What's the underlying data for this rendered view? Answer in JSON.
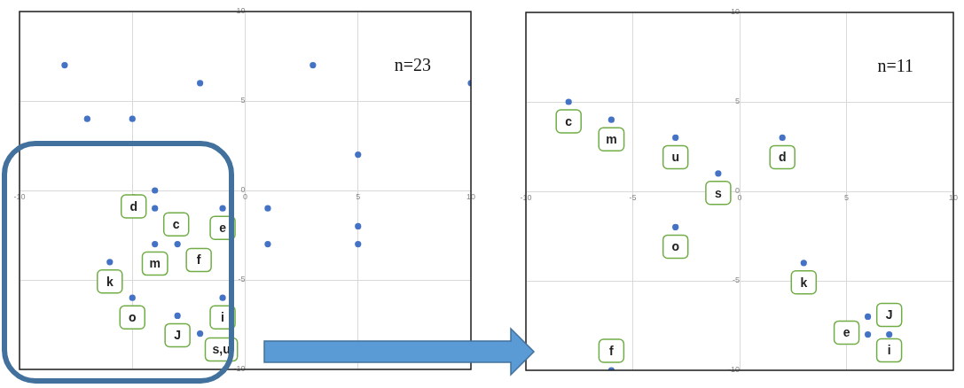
{
  "chart_data": [
    {
      "type": "scatter",
      "xlim": [
        -10,
        10
      ],
      "ylim": [
        -10,
        10
      ],
      "xticks": [
        -10,
        -5,
        0,
        5,
        10
      ],
      "yticks": [
        -10,
        -5,
        0,
        5,
        10
      ],
      "grid": true,
      "marker": "circle",
      "series": [
        {
          "color": "#4472c4",
          "x": [
            -8,
            3,
            -2,
            10,
            -7,
            -5,
            5,
            -4,
            -4,
            -1,
            1,
            5,
            -4,
            -3,
            1,
            5,
            -6,
            -5,
            -1,
            -3,
            -2
          ],
          "values": [
            7,
            7,
            6,
            6,
            4,
            4,
            2,
            0,
            -1,
            -1,
            -1,
            -2,
            -3,
            -3,
            -3,
            -3,
            -4,
            -6,
            -6,
            -7,
            -8
          ]
        }
      ],
      "annotations": [
        "n=23",
        {
          "text": "d",
          "x": -4,
          "y": 0
        },
        {
          "text": "c",
          "x": -4,
          "y": -1
        },
        {
          "text": "e",
          "x": -1,
          "y": -1
        },
        {
          "text": "m",
          "x": -4,
          "y": -3
        },
        {
          "text": "f",
          "x": -3,
          "y": -3
        },
        {
          "text": "k",
          "x": -6,
          "y": -4
        },
        {
          "text": "o",
          "x": -5,
          "y": -6
        },
        {
          "text": "i",
          "x": -1,
          "y": -6
        },
        {
          "text": "J",
          "x": -3,
          "y": -7
        },
        {
          "text": "s,u",
          "x": -2,
          "y": -8
        }
      ]
    },
    {
      "type": "scatter",
      "xlim": [
        -10,
        10
      ],
      "ylim": [
        -10,
        10
      ],
      "xticks": [
        -10,
        -5,
        0,
        5,
        10
      ],
      "yticks": [
        -10,
        -5,
        0,
        5,
        10
      ],
      "grid": true,
      "marker": "circle",
      "series": [
        {
          "color": "#4472c4",
          "x": [
            -8,
            -6,
            -3,
            -1,
            2,
            -3,
            3,
            6,
            6,
            7,
            -6
          ],
          "values": [
            5,
            4,
            3,
            1,
            3,
            -2,
            -4,
            -7,
            -8,
            -8,
            -10
          ]
        }
      ],
      "annotations": [
        "n=11",
        {
          "text": "c",
          "x": -8,
          "y": 5
        },
        {
          "text": "m",
          "x": -6,
          "y": 4
        },
        {
          "text": "u",
          "x": -3,
          "y": 3
        },
        {
          "text": "s",
          "x": -1,
          "y": 1
        },
        {
          "text": "d",
          "x": 2,
          "y": 3
        },
        {
          "text": "o",
          "x": -3,
          "y": -2
        },
        {
          "text": "k",
          "x": 3,
          "y": -4
        },
        {
          "text": "e",
          "x": 6,
          "y": -7
        },
        {
          "text": "i",
          "x": 6,
          "y": -8
        },
        {
          "text": "J",
          "x": 7,
          "y": -8
        },
        {
          "text": "f",
          "x": -6,
          "y": -10
        }
      ]
    }
  ]
}
